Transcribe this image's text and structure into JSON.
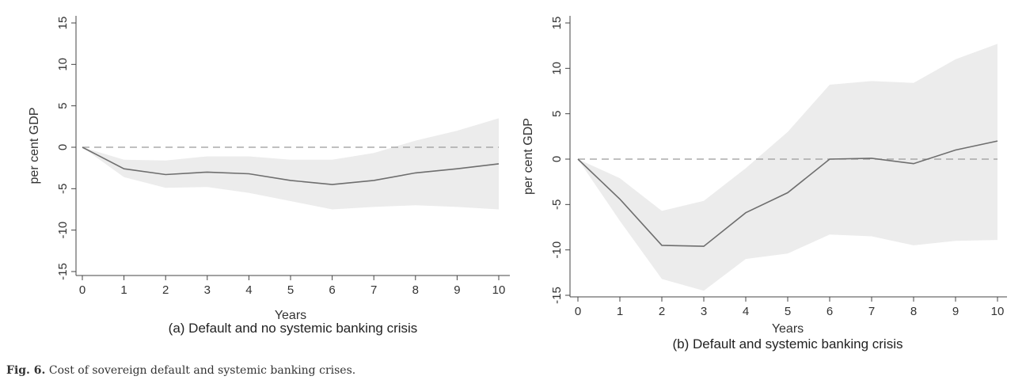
{
  "figure": {
    "label": "Fig. 6.",
    "caption": "Cost of sovereign default and systemic banking crises."
  },
  "colors": {
    "band": "#ececec",
    "line": "#6e6e6e",
    "reference": "#9a9a9a",
    "axis": "#444444"
  },
  "chart_data": [
    {
      "type": "line",
      "title": "(a) Default and no systemic banking crisis",
      "xlabel": "Years",
      "ylabel": "per cent GDP",
      "xlim": [
        0,
        10
      ],
      "ylim": [
        -15,
        15
      ],
      "x_ticks": [
        0,
        1,
        2,
        3,
        4,
        5,
        6,
        7,
        8,
        9,
        10
      ],
      "y_ticks": [
        -15,
        -10,
        -5,
        0,
        5,
        10,
        15
      ],
      "reference_line": 0,
      "grid": false,
      "x": [
        0,
        1,
        2,
        3,
        4,
        5,
        6,
        7,
        8,
        9,
        10
      ],
      "series": [
        {
          "values": [
            0,
            -2.6,
            -3.3,
            -3.0,
            -3.2,
            -4.0,
            -4.5,
            -4.0,
            -3.1,
            -2.6,
            -2.0
          ],
          "lower": [
            0,
            -3.6,
            -4.9,
            -4.8,
            -5.5,
            -6.5,
            -7.5,
            -7.2,
            -7.0,
            -7.2,
            -7.5
          ],
          "upper": [
            0,
            -1.5,
            -1.6,
            -1.1,
            -1.1,
            -1.5,
            -1.5,
            -0.7,
            0.8,
            2.0,
            3.5
          ]
        }
      ]
    },
    {
      "type": "line",
      "title": "(b) Default and systemic banking crisis",
      "xlabel": "Years",
      "ylabel": "per cent GDP",
      "xlim": [
        0,
        10
      ],
      "ylim": [
        -15,
        15
      ],
      "x_ticks": [
        0,
        1,
        2,
        3,
        4,
        5,
        6,
        7,
        8,
        9,
        10
      ],
      "y_ticks": [
        -15,
        -10,
        -5,
        0,
        5,
        10,
        15
      ],
      "reference_line": 0,
      "grid": false,
      "x": [
        0,
        1,
        2,
        3,
        4,
        5,
        6,
        7,
        8,
        9,
        10
      ],
      "series": [
        {
          "values": [
            0,
            -4.4,
            -9.5,
            -9.6,
            -5.9,
            -3.7,
            0,
            0.1,
            -0.5,
            1.0,
            2.0
          ],
          "lower": [
            0,
            -6.8,
            -13.2,
            -14.5,
            -11.0,
            -10.4,
            -8.3,
            -8.5,
            -9.5,
            -9.0,
            -8.9
          ],
          "upper": [
            0,
            -2.1,
            -5.7,
            -4.6,
            -1.0,
            3.0,
            8.2,
            8.6,
            8.4,
            11.0,
            12.7
          ]
        }
      ]
    }
  ]
}
